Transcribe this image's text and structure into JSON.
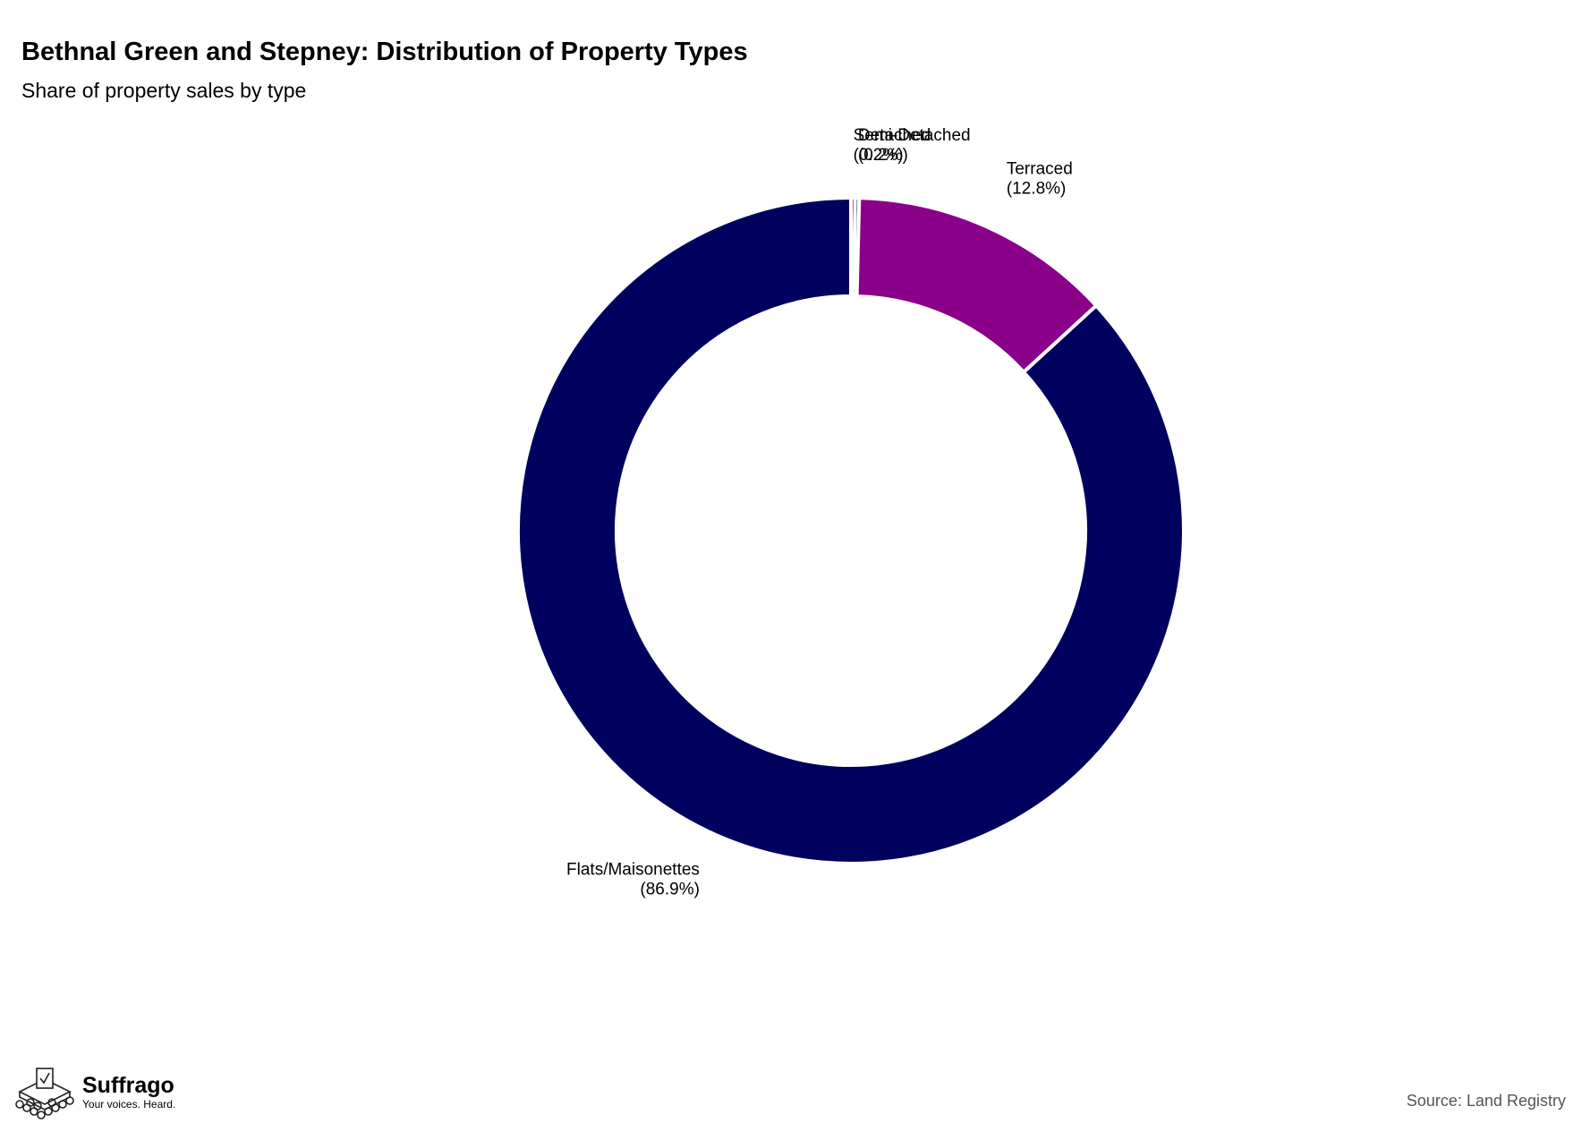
{
  "chart_data": {
    "type": "pie",
    "title": "Bethnal Green and Stepney: Distribution of Property Types",
    "subtitle": "Share of property sales by type",
    "donut": true,
    "slices": [
      {
        "name": "Semi-Detached",
        "value": 0.2,
        "label": "(0.2%)",
        "color": "#00005f"
      },
      {
        "name": "Detached",
        "value": 0.2,
        "label": "(0.2%)",
        "color": "#00005f"
      },
      {
        "name": "Terraced",
        "value": 12.8,
        "label": "(12.8%)",
        "color": "#8b008b"
      },
      {
        "name": "Flats/Maisonettes",
        "value": 86.9,
        "label": "(86.9%)",
        "color": "#00005f"
      }
    ],
    "source": "Source: Land Registry"
  },
  "branding": {
    "name": "Suffrago",
    "tagline": "Your voices. Heard."
  },
  "icons": [
    "ballot-box-icon"
  ]
}
